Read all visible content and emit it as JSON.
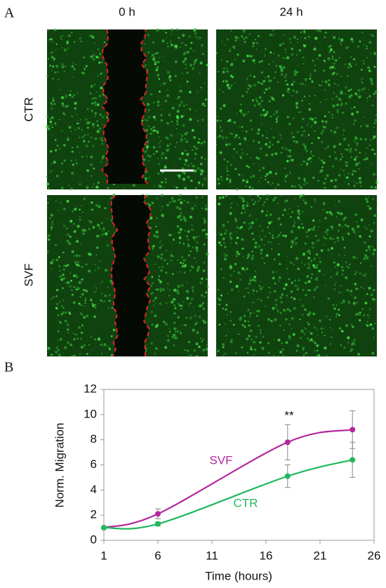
{
  "panel_a": {
    "label": "A",
    "columns": [
      "0 h",
      "24 h"
    ],
    "rows": [
      "CTR",
      "SVF"
    ]
  },
  "chart_data": {
    "type": "line",
    "panel_label": "B",
    "x_label": "Time (hours)",
    "y_label": "Norm. Migration",
    "annotation": "**",
    "x": [
      1,
      6,
      18,
      24
    ],
    "series": [
      {
        "name": "SVF",
        "color": "#b3289c",
        "values": [
          1.0,
          2.1,
          7.8,
          8.8
        ],
        "errors": [
          0.05,
          0.4,
          1.4,
          1.5
        ]
      },
      {
        "name": "CTR",
        "color": "#20b85c",
        "values": [
          1.0,
          1.3,
          5.1,
          6.4
        ],
        "errors": [
          0.05,
          0.15,
          0.9,
          1.4
        ]
      }
    ],
    "xlim": [
      1,
      26
    ],
    "xticks": [
      1,
      6,
      11,
      16,
      21,
      26
    ],
    "ylim": [
      0,
      12
    ],
    "yticks": [
      0,
      2,
      4,
      6,
      8,
      10,
      12
    ]
  }
}
